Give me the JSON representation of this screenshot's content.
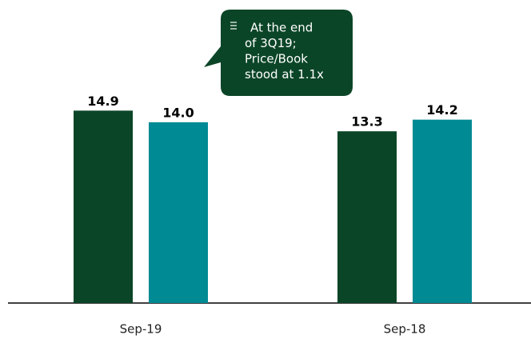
{
  "chart_data": {
    "type": "bar",
    "categories": [
      "Sep-19",
      "Sep-18"
    ],
    "series": [
      {
        "color": "#0b4527",
        "values": [
          14.9,
          13.3
        ],
        "value_labels": [
          "14.9",
          "13.3"
        ]
      },
      {
        "color": "#008a93",
        "values": [
          14.0,
          14.2
        ],
        "value_labels": [
          "14.0",
          "14.2"
        ]
      }
    ],
    "ylim": [
      0,
      20
    ],
    "annotation": [
      "At the end",
      "of 3Q19;",
      "Price/Book",
      "stood at 1.1x"
    ]
  }
}
